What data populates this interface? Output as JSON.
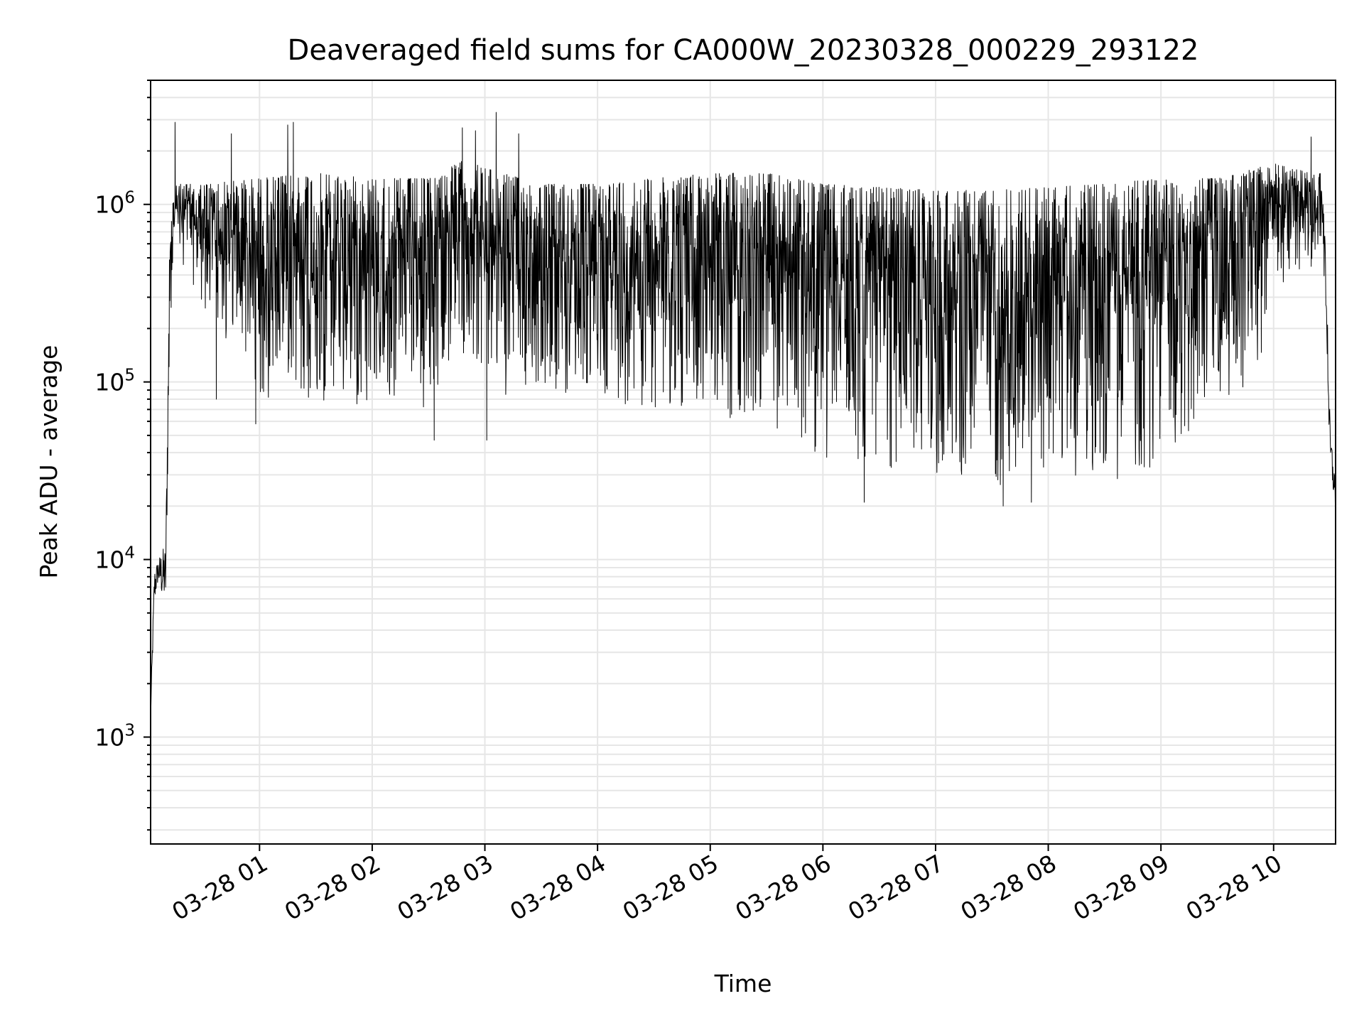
{
  "chart_data": {
    "type": "line",
    "title": "Deaveraged field sums for CA000W_20230328_000229_293122",
    "xlabel": "Time",
    "ylabel": "Peak ADU - average",
    "yscale": "log",
    "ylim": [
      250,
      5000000
    ],
    "xlim": [
      "2023-03-28 00:02",
      "2023-03-28 10:33"
    ],
    "grid": true,
    "line_color": "#000000",
    "grid_color": "#e6e6e6",
    "x_tick_labels": [
      "03-28 01",
      "03-28 02",
      "03-28 03",
      "03-28 04",
      "03-28 05",
      "03-28 06",
      "03-28 07",
      "03-28 08",
      "03-28 09",
      "03-28 10"
    ],
    "y_ticks": [
      {
        "base": "10",
        "exp": "3",
        "value": 1000
      },
      {
        "base": "10",
        "exp": "4",
        "value": 10000
      },
      {
        "base": "10",
        "exp": "5",
        "value": 100000
      },
      {
        "base": "10",
        "exp": "6",
        "value": 1000000
      }
    ],
    "series": [
      {
        "envelope": [
          {
            "t": "00:02",
            "low": 1200,
            "high": 1500
          },
          {
            "t": "00:04",
            "low": 5500,
            "high": 9000
          },
          {
            "t": "00:06",
            "low": 7500,
            "high": 10000
          },
          {
            "t": "00:08",
            "low": 6000,
            "high": 11500
          },
          {
            "t": "00:10",
            "low": 5500,
            "high": 12000
          },
          {
            "t": "00:12",
            "low": 100000,
            "high": 600000
          },
          {
            "t": "00:14",
            "low": 600000,
            "high": 1100000
          },
          {
            "t": "00:16",
            "low": 550000,
            "high": 1300000
          },
          {
            "t": "00:30",
            "low": 250000,
            "high": 1300000
          },
          {
            "t": "01:00",
            "low": 80000,
            "high": 1400000
          },
          {
            "t": "01:30",
            "low": 70000,
            "high": 1500000
          },
          {
            "t": "02:00",
            "low": 70000,
            "high": 1400000
          },
          {
            "t": "02:30",
            "low": 70000,
            "high": 1400000
          },
          {
            "t": "02:50",
            "low": 150000,
            "high": 1800000
          },
          {
            "t": "03:00",
            "low": 80000,
            "high": 1600000
          },
          {
            "t": "03:30",
            "low": 80000,
            "high": 1300000
          },
          {
            "t": "04:00",
            "low": 80000,
            "high": 1300000
          },
          {
            "t": "04:30",
            "low": 70000,
            "high": 1400000
          },
          {
            "t": "05:00",
            "low": 65000,
            "high": 1500000
          },
          {
            "t": "05:30",
            "low": 50000,
            "high": 1500000
          },
          {
            "t": "06:00",
            "low": 35000,
            "high": 1300000
          },
          {
            "t": "06:30",
            "low": 30000,
            "high": 1250000
          },
          {
            "t": "07:00",
            "low": 28000,
            "high": 1200000
          },
          {
            "t": "07:30",
            "low": 25000,
            "high": 1200000
          },
          {
            "t": "08:00",
            "low": 28000,
            "high": 1250000
          },
          {
            "t": "08:30",
            "low": 28000,
            "high": 1300000
          },
          {
            "t": "09:00",
            "low": 30000,
            "high": 1400000
          },
          {
            "t": "09:30",
            "low": 70000,
            "high": 1400000
          },
          {
            "t": "09:50",
            "low": 80000,
            "high": 1600000
          },
          {
            "t": "10:00",
            "low": 350000,
            "high": 1700000
          },
          {
            "t": "10:20",
            "low": 400000,
            "high": 1500000
          },
          {
            "t": "10:25",
            "low": 600000,
            "high": 1500000
          },
          {
            "t": "10:28",
            "low": 200000,
            "high": 600000
          },
          {
            "t": "10:30",
            "low": 30000,
            "high": 60000
          },
          {
            "t": "10:33",
            "low": 19000,
            "high": 28000
          }
        ],
        "spikes": [
          {
            "t": "00:15",
            "value": 2900000
          },
          {
            "t": "00:45",
            "value": 2500000
          },
          {
            "t": "01:15",
            "value": 2800000
          },
          {
            "t": "01:18",
            "value": 2900000
          },
          {
            "t": "02:48",
            "value": 2700000
          },
          {
            "t": "02:55",
            "value": 2600000
          },
          {
            "t": "03:06",
            "value": 3300000
          },
          {
            "t": "03:18",
            "value": 2500000
          },
          {
            "t": "10:20",
            "value": 2400000
          }
        ],
        "dips": [
          {
            "t": "00:37",
            "value": 80000
          },
          {
            "t": "00:58",
            "value": 58000
          },
          {
            "t": "02:33",
            "value": 47000
          },
          {
            "t": "03:01",
            "value": 47000
          },
          {
            "t": "06:22",
            "value": 21000
          },
          {
            "t": "07:36",
            "value": 20000
          },
          {
            "t": "07:51",
            "value": 21000
          }
        ]
      }
    ]
  }
}
